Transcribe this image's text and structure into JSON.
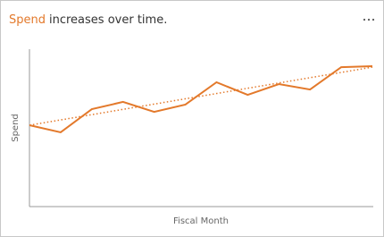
{
  "chart_data": {
    "type": "line",
    "title_highlight": "Spend",
    "title_rest": "increases over time.",
    "y_label": "Spend",
    "x_label": "Fiscal Month",
    "categories": [
      null,
      null,
      null,
      null,
      null,
      null,
      null,
      null,
      null,
      null,
      null,
      null
    ],
    "series": [
      {
        "name": "Spend",
        "color": "#e3792b",
        "values": [
          51.7,
          47.2,
          61.9,
          66.5,
          60.2,
          64.8,
          79.0,
          71.0,
          77.8,
          74.4,
          88.6,
          89.2
        ]
      }
    ],
    "trendline": {
      "color": "#e3792b",
      "values": [
        51.7,
        88.6
      ]
    },
    "ylim": [
      0,
      100
    ]
  }
}
